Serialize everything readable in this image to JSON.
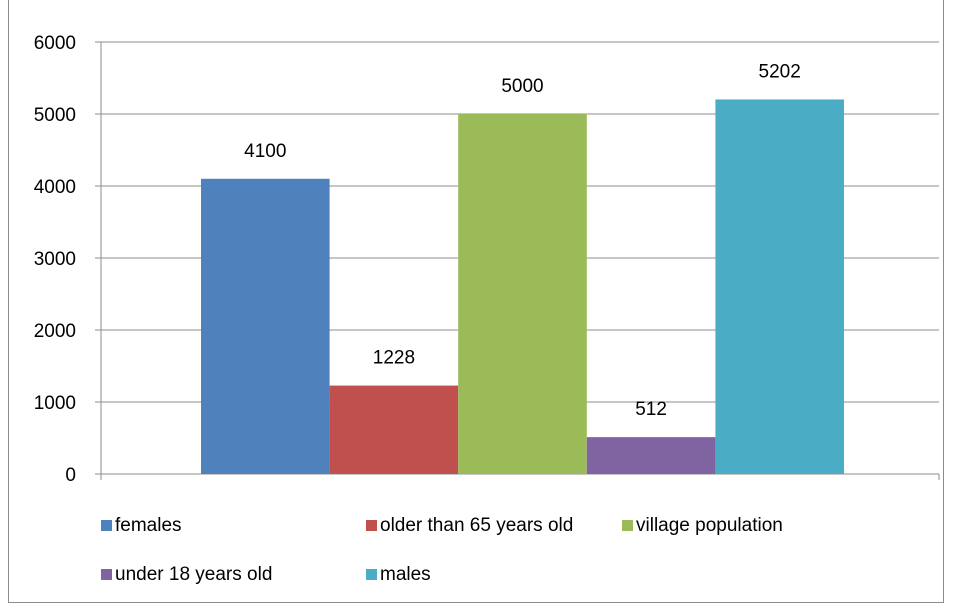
{
  "chart_data": {
    "type": "bar",
    "title": "",
    "xlabel": "",
    "ylabel": "",
    "ylim": [
      0,
      6000
    ],
    "yticks": [
      0,
      1000,
      2000,
      3000,
      4000,
      5000,
      6000
    ],
    "grid": true,
    "legend_position": "bottom",
    "series": [
      {
        "name": "females",
        "values": [
          4100
        ],
        "color": "#4F81BD"
      },
      {
        "name": "older than 65 years old",
        "values": [
          1228
        ],
        "color": "#C0504D"
      },
      {
        "name": "village population",
        "values": [
          5000
        ],
        "color": "#9BBB59"
      },
      {
        "name": "under 18 years old",
        "values": [
          512
        ],
        "color": "#8064A2"
      },
      {
        "name": "males",
        "values": [
          5202
        ],
        "color": "#4BACC6"
      }
    ]
  }
}
